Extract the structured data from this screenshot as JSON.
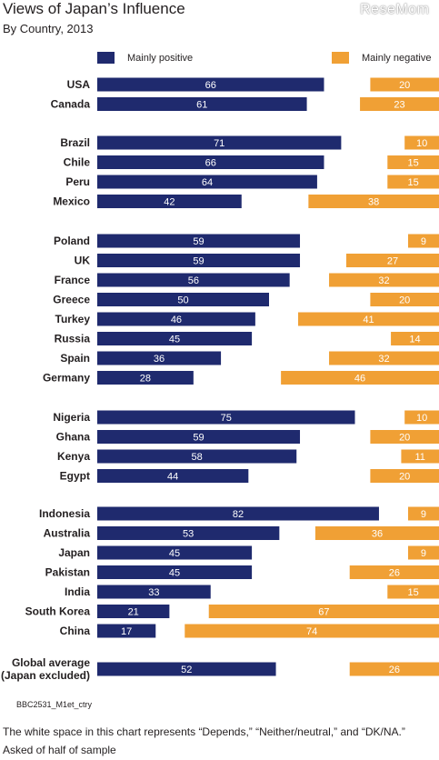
{
  "header": {
    "title": "Views of Japan’s Influence",
    "subtitle": "By Country, 2013",
    "logo": "ReseMom"
  },
  "legend": {
    "positive_label": "Mainly positive",
    "negative_label": "Mainly negative"
  },
  "colors": {
    "positive": "#1f2a6e",
    "negative": "#f0a035"
  },
  "footer": {
    "code": "BBC2531_M1et_ctry",
    "note": "The white space in this chart represents “Depends,” “Neither/neutral,” and “DK/NA.”",
    "sample": "Asked of half of sample"
  },
  "chart_data": {
    "type": "bar",
    "title": "Views of Japan’s Influence",
    "subtitle": "By Country, 2013",
    "xlim": [
      0,
      100
    ],
    "series": [
      {
        "name": "Mainly positive",
        "color": "#1f2a6e"
      },
      {
        "name": "Mainly negative",
        "color": "#f0a035"
      }
    ],
    "groups": [
      {
        "rows": [
          {
            "country": "USA",
            "positive": 66,
            "negative": 20
          },
          {
            "country": "Canada",
            "positive": 61,
            "negative": 23
          }
        ]
      },
      {
        "rows": [
          {
            "country": "Brazil",
            "positive": 71,
            "negative": 10
          },
          {
            "country": "Chile",
            "positive": 66,
            "negative": 15
          },
          {
            "country": "Peru",
            "positive": 64,
            "negative": 15
          },
          {
            "country": "Mexico",
            "positive": 42,
            "negative": 38
          }
        ]
      },
      {
        "rows": [
          {
            "country": "Poland",
            "positive": 59,
            "negative": 9
          },
          {
            "country": "UK",
            "positive": 59,
            "negative": 27
          },
          {
            "country": "France",
            "positive": 56,
            "negative": 32
          },
          {
            "country": "Greece",
            "positive": 50,
            "negative": 20
          },
          {
            "country": "Turkey",
            "positive": 46,
            "negative": 41
          },
          {
            "country": "Russia",
            "positive": 45,
            "negative": 14
          },
          {
            "country": "Spain",
            "positive": 36,
            "negative": 32
          },
          {
            "country": "Germany",
            "positive": 28,
            "negative": 46
          }
        ]
      },
      {
        "rows": [
          {
            "country": "Nigeria",
            "positive": 75,
            "negative": 10
          },
          {
            "country": "Ghana",
            "positive": 59,
            "negative": 20
          },
          {
            "country": "Kenya",
            "positive": 58,
            "negative": 11
          },
          {
            "country": "Egypt",
            "positive": 44,
            "negative": 20
          }
        ]
      },
      {
        "rows": [
          {
            "country": "Indonesia",
            "positive": 82,
            "negative": 9
          },
          {
            "country": "Australia",
            "positive": 53,
            "negative": 36
          },
          {
            "country": "Japan",
            "positive": 45,
            "negative": 9
          },
          {
            "country": "Pakistan",
            "positive": 45,
            "negative": 26
          },
          {
            "country": "India",
            "positive": 33,
            "negative": 15
          },
          {
            "country": "South Korea",
            "positive": 21,
            "negative": 67
          },
          {
            "country": "China",
            "positive": 17,
            "negative": 74
          }
        ]
      },
      {
        "rows": [
          {
            "country": "Global average\n(Japan excluded)",
            "positive": 52,
            "negative": 26
          }
        ]
      }
    ]
  }
}
